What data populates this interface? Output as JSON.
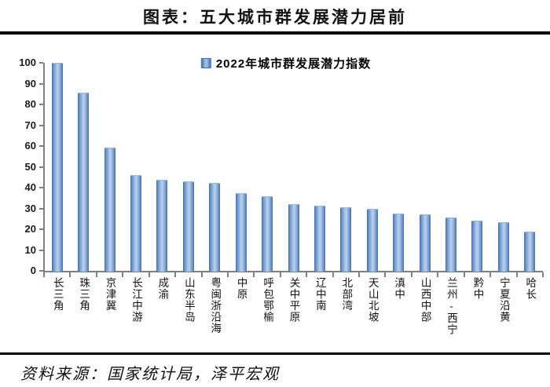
{
  "page": {
    "title": "图表：五大城市群发展潜力居前",
    "source": "资料来源：国家统计局，泽平宏观"
  },
  "chart_data": {
    "type": "bar",
    "title": "图表：五大城市群发展潜力居前",
    "legend": "2022年城市群发展潜力指数",
    "legend_position": "top-center",
    "categories": [
      "长三角",
      "珠三角",
      "京津冀",
      "长江中游",
      "成渝",
      "山东半岛",
      "粤闽浙沿海",
      "中原",
      "呼包鄂榆",
      "关中平原",
      "辽中南",
      "北部湾",
      "天山北坡",
      "滇中",
      "山西中部",
      "兰州-西宁",
      "黔中",
      "宁夏沿黄",
      "哈长"
    ],
    "values": [
      100,
      85.5,
      59.2,
      46.0,
      43.8,
      43.2,
      42.3,
      37.5,
      35.8,
      31.9,
      31.4,
      30.4,
      29.8,
      27.7,
      27.2,
      25.5,
      24.2,
      23.3,
      18.8
    ],
    "xlabel": "",
    "ylabel": "",
    "ylim": [
      0,
      100
    ],
    "yticks": [
      0,
      10,
      20,
      30,
      40,
      50,
      60,
      70,
      80,
      90,
      100
    ],
    "grid": false,
    "bar_color": "#4f81bd",
    "bar_gradient_edge": "#3f6eb5",
    "bar_gradient_center": "#aec9e8",
    "axis_color": "#7f7f7f",
    "source": "资料来源：国家统计局，泽平宏观"
  }
}
